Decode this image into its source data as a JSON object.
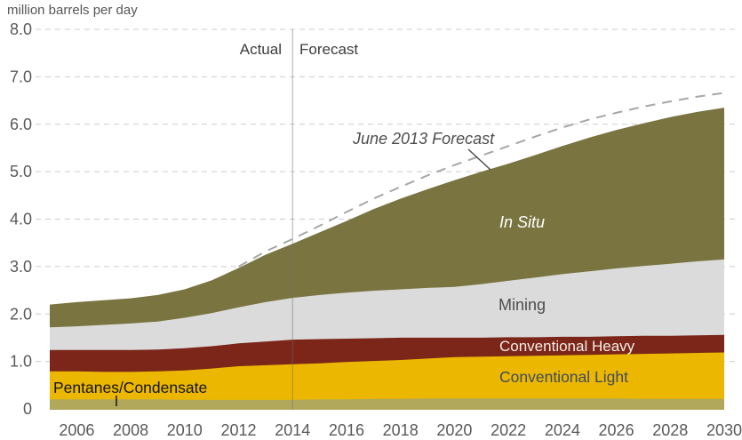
{
  "title": "million barrels per day",
  "divider_labels": {
    "actual": "Actual",
    "forecast": "Forecast"
  },
  "annotations": {
    "june_forecast_label": "June 2013 Forecast",
    "pentanes_label": "Pentanes/Condensate"
  },
  "area_labels": {
    "in_situ": "In Situ",
    "mining": "Mining",
    "conventional_heavy": "Conventional Heavy",
    "conventional_light": "Conventional Light"
  },
  "colors": {
    "in_situ": "#7a7540",
    "mining": "#dbdbdb",
    "conventional_heavy": "#7b2619",
    "conventional_light": "#ebb700",
    "pentanes": "#b2a85b",
    "forecast_dash": "#a6a6a6",
    "gridline": "#cccccc",
    "axis_text": "#595959",
    "divider_line": "#6e6e6e"
  },
  "chart_data": {
    "type": "area",
    "title": "million barrels per day",
    "xlabel": "",
    "ylabel": "million barrels per day",
    "xlim": [
      2005,
      2030
    ],
    "ylim": [
      0,
      8
    ],
    "grid": "dashed horizontal",
    "legend_position": "labels-on-areas",
    "x": [
      2005,
      2006,
      2007,
      2008,
      2009,
      2010,
      2011,
      2012,
      2013,
      2014,
      2015,
      2016,
      2017,
      2018,
      2019,
      2020,
      2021,
      2022,
      2023,
      2024,
      2025,
      2026,
      2027,
      2028,
      2029,
      2030
    ],
    "x_ticks": [
      2006,
      2008,
      2010,
      2012,
      2014,
      2016,
      2018,
      2020,
      2022,
      2024,
      2026,
      2028,
      2030
    ],
    "y_ticks": [
      {
        "label": "8.0",
        "value": 8
      },
      {
        "label": "7.0",
        "value": 7
      },
      {
        "label": "6.0",
        "value": 6
      },
      {
        "label": "5.0",
        "value": 5
      },
      {
        "label": "4.0",
        "value": 4
      },
      {
        "label": "3.0",
        "value": 3
      },
      {
        "label": "2.0",
        "value": 2
      },
      {
        "label": "1.0",
        "value": 1
      },
      {
        "label": "0",
        "value": 0
      }
    ],
    "y_gridlines": [
      1,
      2,
      3,
      4,
      5,
      6,
      7,
      8
    ],
    "series_note": "values are cumulative stack tops, million barrels per day",
    "series": [
      {
        "name": "Pentanes/Condensate",
        "color": "#b2a85b",
        "tops": [
          0.2,
          0.2,
          0.2,
          0.2,
          0.2,
          0.19,
          0.19,
          0.19,
          0.19,
          0.19,
          0.2,
          0.2,
          0.21,
          0.21,
          0.22,
          0.22,
          0.22,
          0.22,
          0.22,
          0.22,
          0.22,
          0.22,
          0.21,
          0.21,
          0.21,
          0.21
        ]
      },
      {
        "name": "Conventional Light",
        "color": "#ebb700",
        "tops": [
          0.79,
          0.79,
          0.78,
          0.78,
          0.79,
          0.81,
          0.85,
          0.9,
          0.92,
          0.94,
          0.96,
          0.99,
          1.01,
          1.03,
          1.06,
          1.09,
          1.1,
          1.11,
          1.12,
          1.13,
          1.14,
          1.15,
          1.16,
          1.17,
          1.18,
          1.19
        ]
      },
      {
        "name": "Conventional Heavy",
        "color": "#7b2619",
        "tops": [
          1.24,
          1.24,
          1.24,
          1.24,
          1.25,
          1.28,
          1.32,
          1.38,
          1.42,
          1.46,
          1.47,
          1.48,
          1.49,
          1.5,
          1.5,
          1.5,
          1.5,
          1.51,
          1.51,
          1.52,
          1.52,
          1.53,
          1.54,
          1.54,
          1.55,
          1.56
        ]
      },
      {
        "name": "Mining",
        "color": "#dbdbdb",
        "tops": [
          1.72,
          1.74,
          1.77,
          1.8,
          1.84,
          1.92,
          2.02,
          2.14,
          2.25,
          2.34,
          2.4,
          2.45,
          2.49,
          2.52,
          2.55,
          2.57,
          2.63,
          2.7,
          2.77,
          2.84,
          2.9,
          2.96,
          3.01,
          3.06,
          3.11,
          3.15
        ]
      },
      {
        "name": "In Situ",
        "color": "#7a7540",
        "tops": [
          2.2,
          2.25,
          2.29,
          2.33,
          2.4,
          2.52,
          2.71,
          2.97,
          3.25,
          3.48,
          3.72,
          3.96,
          4.21,
          4.43,
          4.63,
          4.82,
          5.0,
          5.17,
          5.35,
          5.54,
          5.72,
          5.88,
          6.02,
          6.15,
          6.26,
          6.35
        ]
      }
    ],
    "forecast_line": {
      "name": "June 2013 Forecast",
      "color": "#a6a6a6",
      "style": "dashed",
      "x_start": 2012,
      "x": [
        2012,
        2013,
        2014,
        2015,
        2016,
        2017,
        2018,
        2019,
        2020,
        2021,
        2022,
        2023,
        2024,
        2025,
        2026,
        2027,
        2028,
        2029,
        2030
      ],
      "values": [
        3.0,
        3.32,
        3.58,
        3.86,
        4.15,
        4.43,
        4.68,
        4.92,
        5.14,
        5.34,
        5.54,
        5.74,
        5.93,
        6.1,
        6.24,
        6.37,
        6.48,
        6.58,
        6.66
      ]
    },
    "divider": {
      "x": 2014,
      "left_label": "Actual",
      "right_label": "Forecast"
    }
  }
}
